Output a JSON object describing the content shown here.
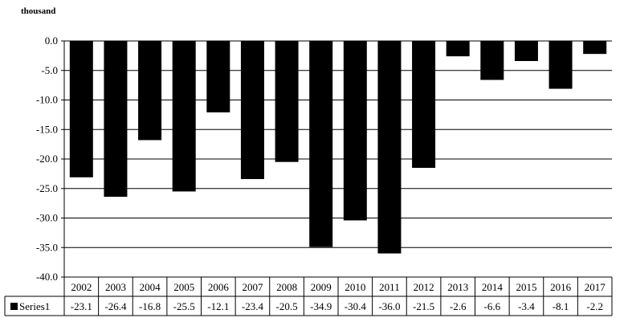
{
  "chart_data": {
    "type": "bar",
    "ylabel": "thousand",
    "categories": [
      "2002",
      "2003",
      "2004",
      "2005",
      "2006",
      "2007",
      "2008",
      "2009",
      "2010",
      "2011",
      "2012",
      "2013",
      "2014",
      "2015",
      "2016",
      "2017"
    ],
    "series": [
      {
        "name": "Series1",
        "values": [
          -23.1,
          -26.4,
          -16.8,
          -25.5,
          -12.1,
          -23.4,
          -20.5,
          -34.9,
          -30.4,
          -36.0,
          -21.5,
          -2.6,
          -6.6,
          -3.4,
          -8.1,
          -2.2
        ],
        "labels": [
          "-23.1",
          "-26.4",
          "-16.8",
          "-25.5",
          "-12.1",
          "-23.4",
          "-20.5",
          "-34.9",
          "-30.4",
          "-36.0",
          "-21.5",
          "-2.6",
          "-6.6",
          "-3.4",
          "-8.1",
          "-2.2"
        ],
        "color": "#000000"
      }
    ],
    "ylim": [
      -40,
      0
    ],
    "yticks": [
      "0.0",
      "-5.0",
      "-10.0",
      "-15.0",
      "-20.0",
      "-25.0",
      "-30.0",
      "-35.0",
      "-40.0"
    ],
    "grid": true,
    "legend": "data-table"
  }
}
